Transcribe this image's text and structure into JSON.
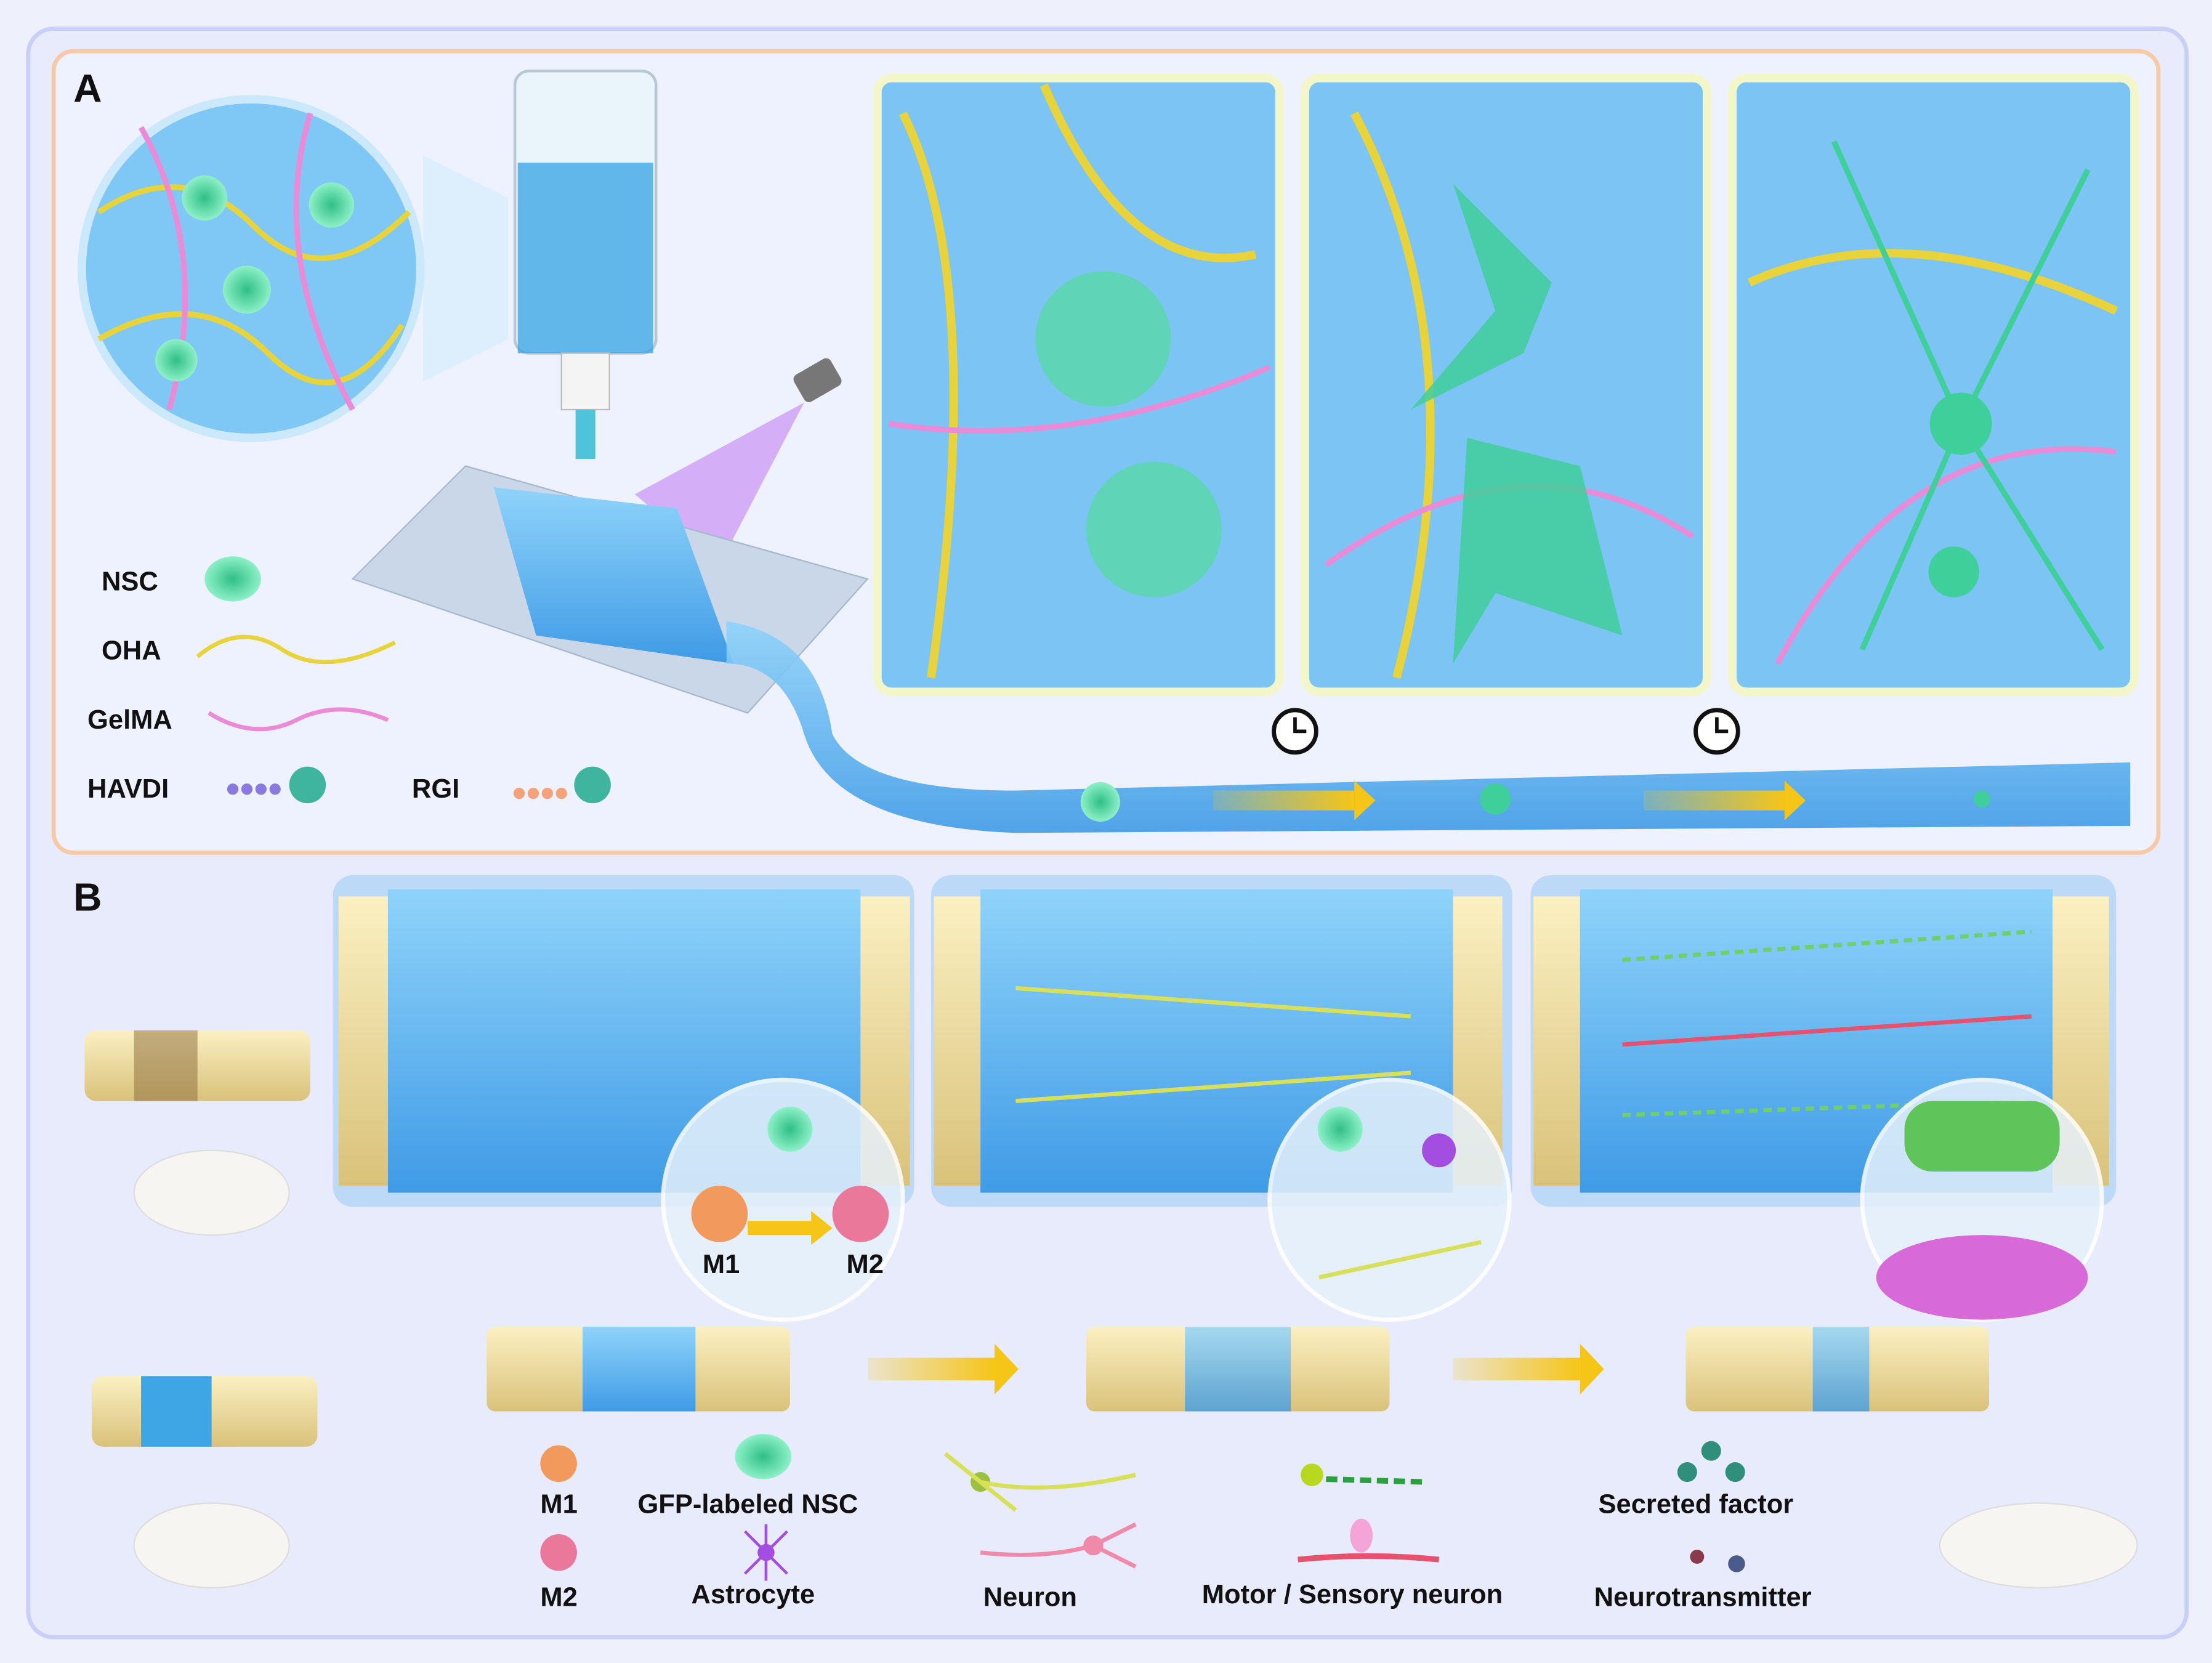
{
  "panels": {
    "a": {
      "label": "A",
      "legend": [
        {
          "name": "NSC",
          "icon": "nsc-cell-icon",
          "color": "#4fd6a8"
        },
        {
          "name": "OHA",
          "icon": "oha-chain-icon",
          "color": "#e8d43a"
        },
        {
          "name": "GelMA",
          "icon": "gelma-chain-icon",
          "color": "#e98bd6"
        },
        {
          "name": "HAVDI",
          "icon": "havdi-peptide-icon",
          "color": "#8a7ae0"
        },
        {
          "name": "RGI",
          "icon": "rgi-peptide-icon",
          "color": "#f4a27a"
        }
      ],
      "stage_icons": [
        "clock-icon",
        "clock-icon"
      ]
    },
    "b": {
      "label": "B",
      "macrophage_labels": [
        "M1",
        "M2"
      ],
      "legend": [
        {
          "name": "M1",
          "icon": "m1-macrophage-icon",
          "color": "#f29a5e"
        },
        {
          "name": "M2",
          "icon": "m2-macrophage-icon",
          "color": "#e9789a"
        },
        {
          "name": "GFP-labeled NSC",
          "icon": "gfp-nsc-icon",
          "color": "#4fd6a8"
        },
        {
          "name": "Astrocyte",
          "icon": "astrocyte-icon",
          "color": "#a34ee0"
        },
        {
          "name": "Neuron",
          "icon": "neuron-icon",
          "color": "#d8e05a"
        },
        {
          "name": "Motor / Sensory neuron",
          "icon": "motor-sensory-neuron-icon",
          "color": "#e8516e"
        },
        {
          "name": "Secreted factor",
          "icon": "secreted-factor-icon",
          "color": "#2f8f7a"
        },
        {
          "name": "Neurotransmitter",
          "icon": "neurotransmitter-icon",
          "color": "#6a4a6a"
        }
      ]
    }
  },
  "colors": {
    "background": "#eef0fb",
    "panel_a_border": "#f6c9a8",
    "panel_b_bg": "#dfe3fb",
    "hydrogel": "#5ab6f0",
    "arrow": "#f5c518",
    "nerve": "#f2e2a4"
  }
}
